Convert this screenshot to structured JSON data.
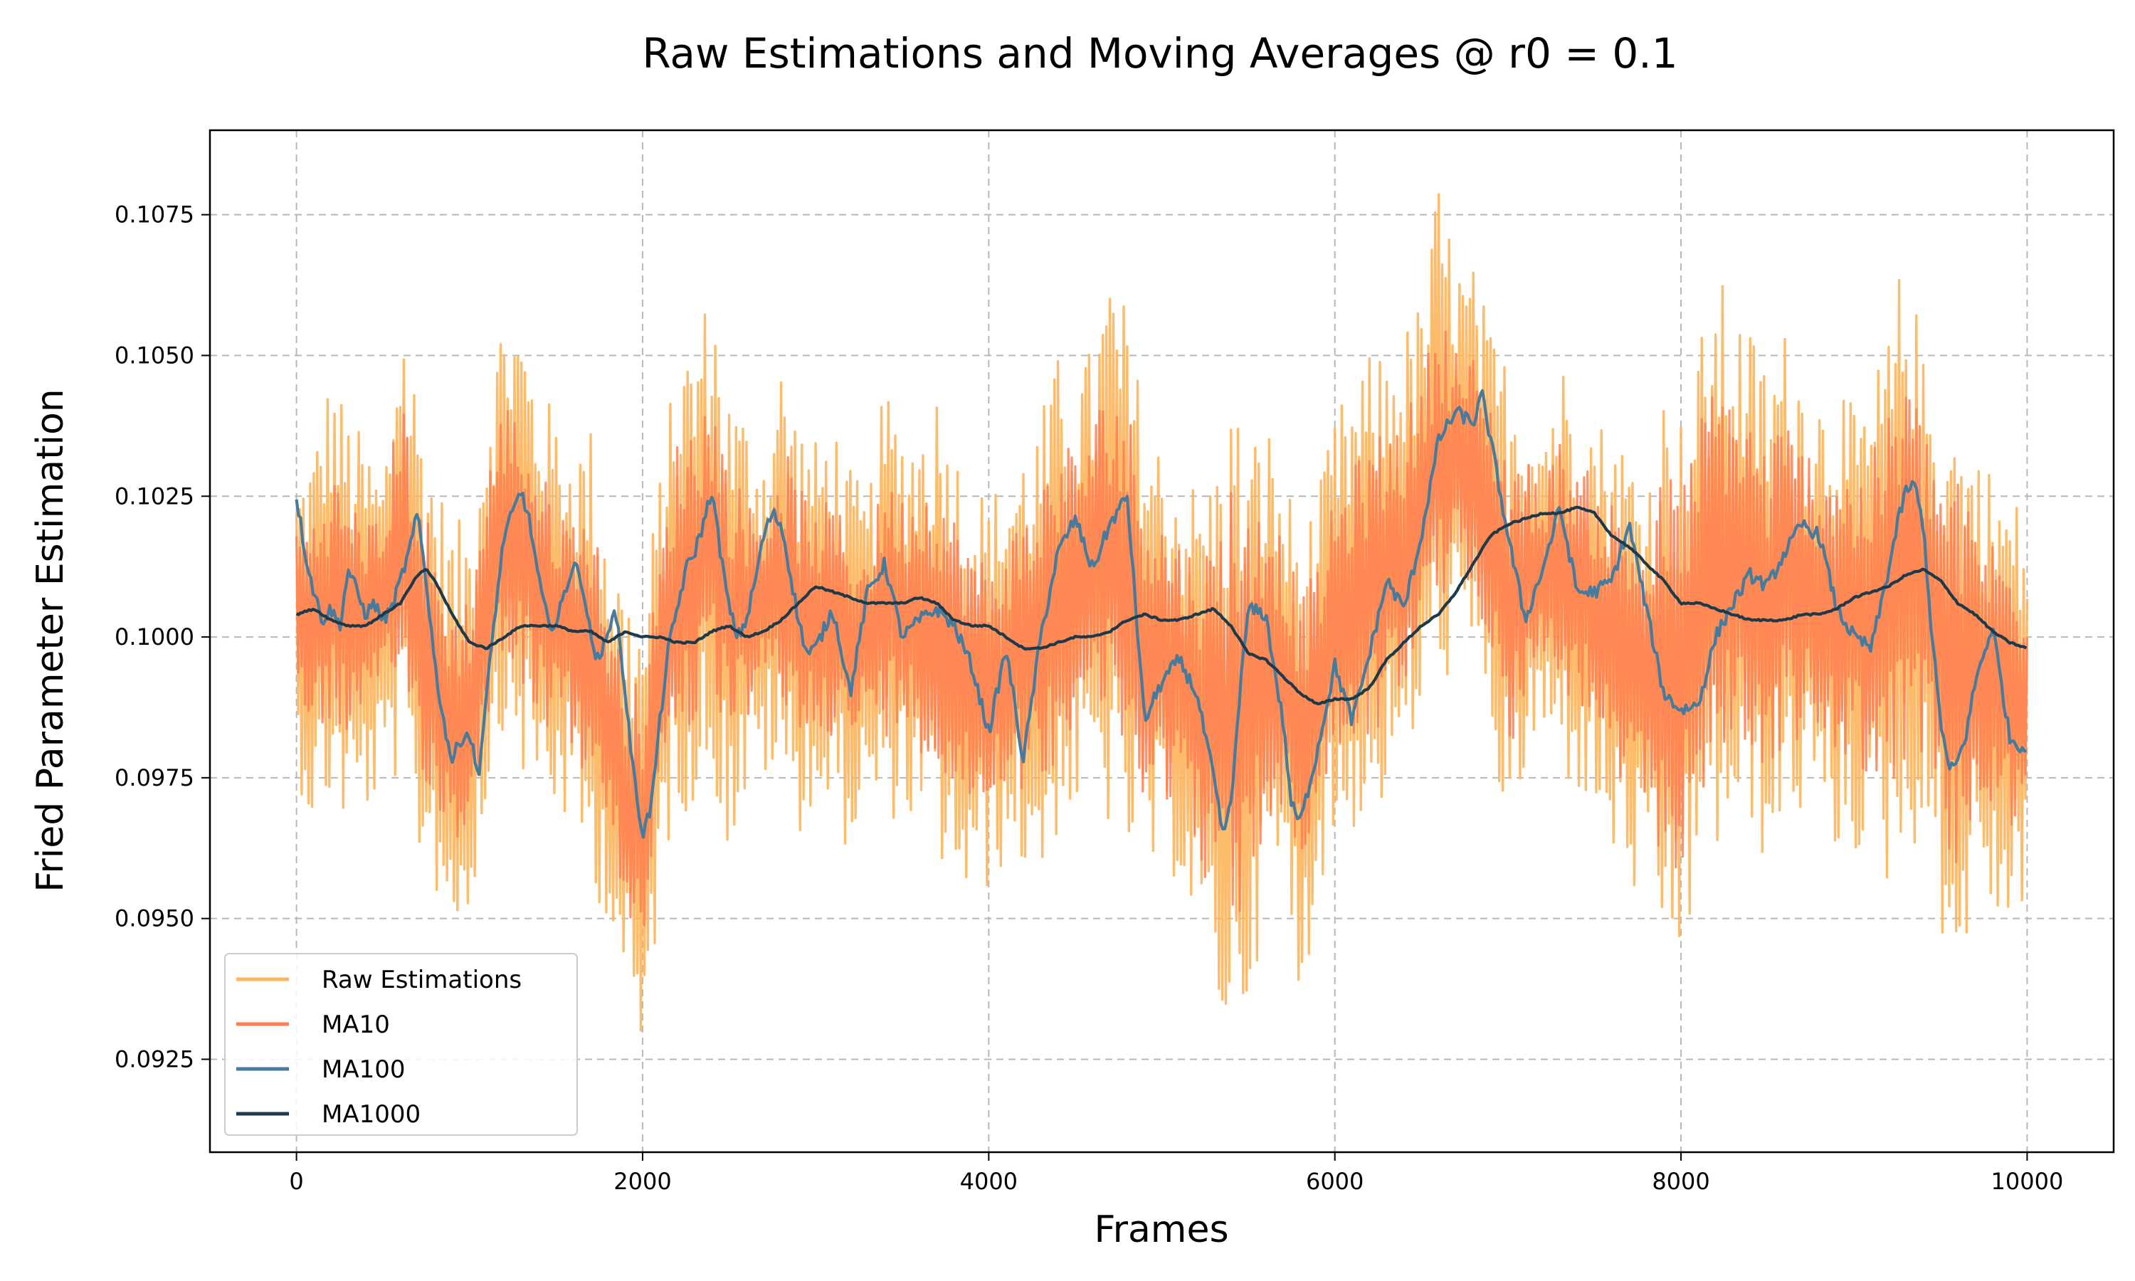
{
  "chart_data": {
    "type": "line",
    "title": "Raw Estimations and Moving Averages @ r0 = 0.1",
    "xlabel": "Frames",
    "ylabel": "Fried Parameter Estimation",
    "xlim": [
      -500,
      10500
    ],
    "ylim": [
      0.09085,
      0.109
    ],
    "x_ticks": [
      0,
      2000,
      4000,
      6000,
      8000,
      10000
    ],
    "x_tick_labels": [
      "0",
      "2000",
      "4000",
      "6000",
      "8000",
      "10000"
    ],
    "y_ticks": [
      0.0925,
      0.095,
      0.0975,
      0.1,
      0.1025,
      0.105,
      0.1075
    ],
    "y_tick_labels": [
      "0.0925",
      "0.0950",
      "0.0975",
      "0.1000",
      "0.1025",
      "0.1050",
      "0.1075"
    ],
    "grid": true,
    "legend_position": "lower-left",
    "series": [
      {
        "name": "Raw Estimations",
        "color": "#fdb45c",
        "x": [
          0,
          100,
          200,
          300,
          400,
          500,
          600,
          700,
          800,
          900,
          1000,
          1100,
          1200,
          1300,
          1400,
          1500,
          1600,
          1700,
          1800,
          1900,
          2000,
          2100,
          2200,
          2300,
          2400,
          2500,
          2600,
          2700,
          2800,
          2900,
          3000,
          3100,
          3200,
          3300,
          3400,
          3500,
          3600,
          3700,
          3800,
          3900,
          4000,
          4100,
          4200,
          4300,
          4400,
          4500,
          4600,
          4700,
          4800,
          4900,
          5000,
          5100,
          5200,
          5300,
          5400,
          5500,
          5600,
          5700,
          5800,
          5900,
          6000,
          6100,
          6200,
          6300,
          6400,
          6500,
          6600,
          6700,
          6800,
          6900,
          7000,
          7100,
          7200,
          7300,
          7400,
          7500,
          7600,
          7700,
          7800,
          7900,
          8000,
          8100,
          8200,
          8300,
          8400,
          8500,
          8600,
          8700,
          8800,
          8900,
          9000,
          9100,
          9200,
          9300,
          9400,
          9500,
          9600,
          9700,
          9800,
          9900,
          10000
        ],
        "min": [
          0.0975,
          0.0965,
          0.097,
          0.0965,
          0.0968,
          0.0972,
          0.0975,
          0.096,
          0.0955,
          0.0945,
          0.095,
          0.097,
          0.0985,
          0.0975,
          0.097,
          0.0968,
          0.0965,
          0.0955,
          0.095,
          0.0935,
          0.0918,
          0.0955,
          0.097,
          0.0968,
          0.0975,
          0.096,
          0.097,
          0.0975,
          0.0972,
          0.0965,
          0.097,
          0.0965,
          0.0962,
          0.097,
          0.0965,
          0.097,
          0.0962,
          0.096,
          0.0955,
          0.095,
          0.0955,
          0.096,
          0.0958,
          0.0955,
          0.0965,
          0.0968,
          0.097,
          0.0965,
          0.096,
          0.0958,
          0.0955,
          0.0958,
          0.0945,
          0.0935,
          0.0925,
          0.0935,
          0.095,
          0.0955,
          0.0932,
          0.0955,
          0.0962,
          0.0965,
          0.0968,
          0.097,
          0.0975,
          0.0985,
          0.099,
          0.0995,
          0.0992,
          0.0985,
          0.0958,
          0.0975,
          0.098,
          0.0975,
          0.0972,
          0.0968,
          0.096,
          0.0955,
          0.0948,
          0.0943,
          0.094,
          0.0955,
          0.096,
          0.0965,
          0.0962,
          0.096,
          0.0965,
          0.0968,
          0.0965,
          0.096,
          0.0962,
          0.0958,
          0.0955,
          0.096,
          0.0965,
          0.0948,
          0.0935,
          0.0955,
          0.095,
          0.0945,
          0.0955
        ],
        "max": [
          0.1028,
          0.1035,
          0.1048,
          0.104,
          0.1035,
          0.103,
          0.1062,
          0.1045,
          0.103,
          0.102,
          0.1022,
          0.1045,
          0.106,
          0.1058,
          0.1045,
          0.104,
          0.1035,
          0.1038,
          0.102,
          0.101,
          0.1005,
          0.103,
          0.105,
          0.1055,
          0.1063,
          0.1045,
          0.104,
          0.1035,
          0.105,
          0.104,
          0.1035,
          0.104,
          0.103,
          0.1025,
          0.1045,
          0.1038,
          0.104,
          0.1045,
          0.1035,
          0.103,
          0.1025,
          0.103,
          0.1035,
          0.104,
          0.105,
          0.1048,
          0.1052,
          0.1068,
          0.1058,
          0.104,
          0.1035,
          0.103,
          0.1028,
          0.103,
          0.1045,
          0.1035,
          0.104,
          0.103,
          0.102,
          0.1025,
          0.104,
          0.1045,
          0.105,
          0.1052,
          0.1055,
          0.106,
          0.1082,
          0.1068,
          0.1066,
          0.1055,
          0.105,
          0.1045,
          0.104,
          0.105,
          0.1045,
          0.104,
          0.1038,
          0.1035,
          0.103,
          0.1045,
          0.104,
          0.1052,
          0.1065,
          0.106,
          0.1055,
          0.105,
          0.1055,
          0.105,
          0.1045,
          0.1048,
          0.104,
          0.1045,
          0.1055,
          0.1071,
          0.105,
          0.1045,
          0.104,
          0.1035,
          0.103,
          0.1028,
          0.102
        ]
      },
      {
        "name": "MA10",
        "color": "#ff7f50",
        "x": [
          0,
          100,
          200,
          300,
          400,
          500,
          600,
          700,
          800,
          900,
          1000,
          1100,
          1200,
          1300,
          1400,
          1500,
          1600,
          1700,
          1800,
          1900,
          2000,
          2100,
          2200,
          2300,
          2400,
          2500,
          2600,
          2700,
          2800,
          2900,
          3000,
          3100,
          3200,
          3300,
          3400,
          3500,
          3600,
          3700,
          3800,
          3900,
          4000,
          4100,
          4200,
          4300,
          4400,
          4500,
          4600,
          4700,
          4800,
          4900,
          5000,
          5100,
          5200,
          5300,
          5400,
          5500,
          5600,
          5700,
          5800,
          5900,
          6000,
          6100,
          6200,
          6300,
          6400,
          6500,
          6600,
          6700,
          6800,
          6900,
          7000,
          7100,
          7200,
          7300,
          7400,
          7500,
          7600,
          7700,
          7800,
          7900,
          8000,
          8100,
          8200,
          8300,
          8400,
          8500,
          8600,
          8700,
          8800,
          8900,
          9000,
          9100,
          9200,
          9300,
          9400,
          9500,
          9600,
          9700,
          9800,
          9900,
          10000
        ],
        "min": [
          0.099,
          0.0982,
          0.0985,
          0.0982,
          0.0985,
          0.0988,
          0.0992,
          0.0978,
          0.097,
          0.0962,
          0.0965,
          0.0985,
          0.0998,
          0.0992,
          0.0985,
          0.0982,
          0.098,
          0.0972,
          0.0965,
          0.095,
          0.0945,
          0.0972,
          0.0985,
          0.0982,
          0.099,
          0.098,
          0.0985,
          0.099,
          0.0988,
          0.098,
          0.0985,
          0.0982,
          0.098,
          0.0985,
          0.0982,
          0.0985,
          0.098,
          0.0975,
          0.0972,
          0.0968,
          0.097,
          0.0975,
          0.0972,
          0.097,
          0.098,
          0.0985,
          0.0988,
          0.0982,
          0.0975,
          0.0972,
          0.097,
          0.0972,
          0.0962,
          0.0952,
          0.0945,
          0.0952,
          0.0965,
          0.097,
          0.0955,
          0.097,
          0.0978,
          0.098,
          0.0982,
          0.0985,
          0.099,
          0.1,
          0.1005,
          0.101,
          0.1005,
          0.1,
          0.0978,
          0.099,
          0.0995,
          0.099,
          0.0988,
          0.0982,
          0.0975,
          0.097,
          0.0965,
          0.096,
          0.0958,
          0.097,
          0.0975,
          0.098,
          0.0978,
          0.0975,
          0.098,
          0.0982,
          0.098,
          0.0975,
          0.0978,
          0.0975,
          0.0972,
          0.0975,
          0.098,
          0.0965,
          0.0955,
          0.097,
          0.0968,
          0.0962,
          0.097
        ],
        "max": [
          0.102,
          0.1022,
          0.103,
          0.1025,
          0.1022,
          0.102,
          0.1045,
          0.103,
          0.1015,
          0.1005,
          0.1008,
          0.103,
          0.1042,
          0.104,
          0.103,
          0.1025,
          0.1022,
          0.1025,
          0.1005,
          0.0995,
          0.099,
          0.1015,
          0.1035,
          0.104,
          0.1045,
          0.103,
          0.1025,
          0.1022,
          0.1035,
          0.1028,
          0.1022,
          0.1025,
          0.1018,
          0.1015,
          0.103,
          0.1025,
          0.1028,
          0.103,
          0.1022,
          0.1018,
          0.1012,
          0.1018,
          0.1022,
          0.1028,
          0.1035,
          0.1035,
          0.1038,
          0.1048,
          0.1042,
          0.1028,
          0.1022,
          0.1018,
          0.1015,
          0.1018,
          0.103,
          0.1022,
          0.1028,
          0.1018,
          0.1008,
          0.1012,
          0.1025,
          0.103,
          0.1035,
          0.1038,
          0.104,
          0.1045,
          0.106,
          0.1052,
          0.105,
          0.1042,
          0.1035,
          0.1032,
          0.1028,
          0.1035,
          0.1032,
          0.1028,
          0.1025,
          0.1022,
          0.1018,
          0.103,
          0.1028,
          0.1038,
          0.1048,
          0.1045,
          0.104,
          0.1035,
          0.104,
          0.1035,
          0.1032,
          0.1035,
          0.1028,
          0.1032,
          0.104,
          0.105,
          0.1038,
          0.1032,
          0.1028,
          0.1022,
          0.1018,
          0.1015,
          0.101
        ]
      },
      {
        "name": "MA100",
        "color": "#457b9d",
        "x": [
          0,
          50,
          100,
          150,
          200,
          250,
          300,
          350,
          400,
          450,
          500,
          550,
          600,
          650,
          700,
          750,
          800,
          850,
          900,
          950,
          1000,
          1050,
          1100,
          1150,
          1200,
          1250,
          1300,
          1350,
          1400,
          1450,
          1500,
          1550,
          1600,
          1650,
          1700,
          1750,
          1800,
          1850,
          1900,
          1950,
          2000,
          2050,
          2100,
          2150,
          2200,
          2250,
          2300,
          2350,
          2400,
          2450,
          2500,
          2550,
          2600,
          2650,
          2700,
          2750,
          2800,
          2850,
          2900,
          2950,
          3000,
          3100,
          3200,
          3300,
          3400,
          3500,
          3600,
          3700,
          3800,
          3900,
          4000,
          4100,
          4200,
          4300,
          4400,
          4500,
          4600,
          4700,
          4800,
          4900,
          5000,
          5100,
          5200,
          5300,
          5350,
          5400,
          5450,
          5500,
          5600,
          5700,
          5750,
          5800,
          5900,
          6000,
          6100,
          6200,
          6300,
          6400,
          6500,
          6600,
          6700,
          6800,
          6850,
          6900,
          7000,
          7100,
          7200,
          7300,
          7400,
          7500,
          7600,
          7700,
          7800,
          7900,
          8000,
          8100,
          8200,
          8300,
          8400,
          8500,
          8600,
          8700,
          8800,
          8900,
          9000,
          9100,
          9200,
          9250,
          9300,
          9350,
          9400,
          9450,
          9500,
          9550,
          9600,
          9650,
          9700,
          9800,
          9900,
          10000
        ],
        "y": [
          0.1025,
          0.1015,
          0.1008,
          0.1003,
          0.1005,
          0.1002,
          0.1012,
          0.1008,
          0.1004,
          0.1006,
          0.1003,
          0.1005,
          0.101,
          0.1015,
          0.1022,
          0.101,
          0.0995,
          0.0985,
          0.0978,
          0.0982,
          0.0983,
          0.0975,
          0.099,
          0.1005,
          0.1018,
          0.1022,
          0.1026,
          0.102,
          0.101,
          0.1003,
          0.1002,
          0.1008,
          0.1013,
          0.101,
          0.1,
          0.0995,
          0.1002,
          0.1004,
          0.099,
          0.0975,
          0.0965,
          0.097,
          0.0985,
          0.0998,
          0.1005,
          0.1012,
          0.1015,
          0.102,
          0.1026,
          0.1015,
          0.1005,
          0.1,
          0.1003,
          0.101,
          0.1018,
          0.1022,
          0.102,
          0.1012,
          0.1003,
          0.0997,
          0.0998,
          0.1005,
          0.099,
          0.1008,
          0.1013,
          0.1,
          0.1003,
          0.1005,
          0.1002,
          0.0995,
          0.0983,
          0.0998,
          0.0978,
          0.1,
          0.1015,
          0.1021,
          0.1012,
          0.102,
          0.1025,
          0.0985,
          0.0992,
          0.0996,
          0.099,
          0.0975,
          0.0965,
          0.097,
          0.099,
          0.1005,
          0.1004,
          0.0985,
          0.097,
          0.0967,
          0.098,
          0.0995,
          0.0985,
          0.0997,
          0.101,
          0.1005,
          0.1018,
          0.1035,
          0.104,
          0.1038,
          0.1043,
          0.1035,
          0.1018,
          0.1003,
          0.1012,
          0.1023,
          0.1008,
          0.1008,
          0.101,
          0.102,
          0.1005,
          0.099,
          0.0987,
          0.0988,
          0.1,
          0.1006,
          0.1011,
          0.1009,
          0.1015,
          0.102,
          0.1018,
          0.1005,
          0.1,
          0.0998,
          0.1012,
          0.102,
          0.1026,
          0.1027,
          0.102,
          0.1,
          0.0985,
          0.0976,
          0.0978,
          0.0983,
          0.0992,
          0.1002,
          0.0982,
          0.098
        ],
        "note": ""
      },
      {
        "name": "MA1000",
        "color": "#1d3a4a",
        "x": [
          0,
          100,
          200,
          300,
          400,
          500,
          600,
          700,
          750,
          800,
          900,
          1000,
          1100,
          1200,
          1300,
          1400,
          1500,
          1600,
          1700,
          1800,
          1900,
          2000,
          2100,
          2200,
          2300,
          2400,
          2500,
          2600,
          2700,
          2800,
          2900,
          3000,
          3100,
          3200,
          3300,
          3400,
          3500,
          3600,
          3700,
          3800,
          3900,
          4000,
          4100,
          4200,
          4300,
          4400,
          4500,
          4600,
          4700,
          4800,
          4900,
          5000,
          5100,
          5200,
          5300,
          5400,
          5500,
          5600,
          5700,
          5800,
          5900,
          6000,
          6100,
          6200,
          6300,
          6400,
          6500,
          6600,
          6700,
          6800,
          6900,
          7000,
          7100,
          7200,
          7300,
          7400,
          7500,
          7600,
          7700,
          7800,
          7900,
          8000,
          8100,
          8200,
          8300,
          8400,
          8500,
          8600,
          8700,
          8800,
          8900,
          9000,
          9100,
          9200,
          9300,
          9400,
          9500,
          9600,
          9700,
          9800,
          9900,
          10000
        ],
        "y": [
          0.1004,
          0.1005,
          0.1003,
          0.1002,
          0.1002,
          0.1004,
          0.1006,
          0.1011,
          0.1012,
          0.101,
          0.1004,
          0.0999,
          0.0998,
          0.1,
          0.1002,
          0.1002,
          0.1002,
          0.1001,
          0.1001,
          0.0999,
          0.1001,
          0.1,
          0.1,
          0.0999,
          0.0999,
          0.1001,
          0.1002,
          0.1,
          0.1001,
          0.1003,
          0.1006,
          0.1009,
          0.1008,
          0.1007,
          0.1006,
          0.1006,
          0.1006,
          0.1007,
          0.1006,
          0.1003,
          0.1002,
          0.1002,
          0.1,
          0.0998,
          0.0998,
          0.0999,
          0.1,
          0.1,
          0.1001,
          0.1003,
          0.1004,
          0.1003,
          0.1003,
          0.1004,
          0.1005,
          0.1002,
          0.0997,
          0.0996,
          0.0993,
          0.099,
          0.0988,
          0.0989,
          0.0989,
          0.0991,
          0.0996,
          0.0999,
          0.1002,
          0.1004,
          0.1008,
          0.1013,
          0.1018,
          0.102,
          0.1021,
          0.1022,
          0.1022,
          0.1023,
          0.1022,
          0.1018,
          0.1016,
          0.1013,
          0.101,
          0.1006,
          0.1006,
          0.1005,
          0.1004,
          0.1003,
          0.1003,
          0.1003,
          0.1004,
          0.1004,
          0.1005,
          0.1007,
          0.1008,
          0.1009,
          0.1011,
          0.1012,
          0.101,
          0.1006,
          0.1004,
          0.1001,
          0.0999,
          0.0998
        ]
      }
    ]
  }
}
